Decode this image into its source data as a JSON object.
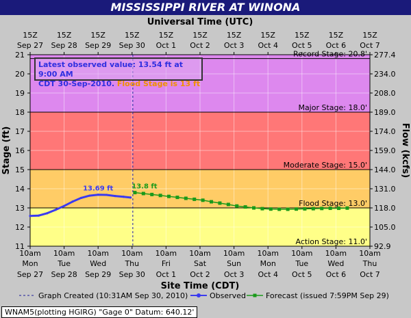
{
  "title": "MISSISSIPPI RIVER AT WINONA",
  "top_axis_title": "Universal Time (UTC)",
  "bottom_axis_title": "Site Time (CDT)",
  "left_axis_title": "Stage (ft)",
  "right_axis_title": "Flow (kcfs)",
  "top_ticks": [
    {
      "l1": "15Z",
      "l2": "Sep 27"
    },
    {
      "l1": "15Z",
      "l2": "Sep 28"
    },
    {
      "l1": "15Z",
      "l2": "Sep 29"
    },
    {
      "l1": "15Z",
      "l2": "Sep 30"
    },
    {
      "l1": "15Z",
      "l2": "Oct 1"
    },
    {
      "l1": "15Z",
      "l2": "Oct 2"
    },
    {
      "l1": "15Z",
      "l2": "Oct 3"
    },
    {
      "l1": "15Z",
      "l2": "Oct 4"
    },
    {
      "l1": "15Z",
      "l2": "Oct 5"
    },
    {
      "l1": "15Z",
      "l2": "Oct 6"
    },
    {
      "l1": "15Z",
      "l2": "Oct 7"
    }
  ],
  "bottom_ticks": [
    {
      "l1": "10am",
      "l2": "Mon",
      "l3": "Sep 27"
    },
    {
      "l1": "10am",
      "l2": "Tue",
      "l3": "Sep 28"
    },
    {
      "l1": "10am",
      "l2": "Wed",
      "l3": "Sep 29"
    },
    {
      "l1": "10am",
      "l2": "Thu",
      "l3": "Sep 30"
    },
    {
      "l1": "10am",
      "l2": "Fri",
      "l3": "Oct 1"
    },
    {
      "l1": "10am",
      "l2": "Sat",
      "l3": "Oct 2"
    },
    {
      "l1": "10am",
      "l2": "Sun",
      "l3": "Oct 3"
    },
    {
      "l1": "10am",
      "l2": "Mon",
      "l3": "Oct 4"
    },
    {
      "l1": "10am",
      "l2": "Tue",
      "l3": "Oct 5"
    },
    {
      "l1": "10am",
      "l2": "Wed",
      "l3": "Oct 6"
    },
    {
      "l1": "10am",
      "l2": "Thu",
      "l3": "Oct 7"
    }
  ],
  "left_ticks": [
    11,
    12,
    13,
    14,
    15,
    16,
    17,
    18,
    19,
    20,
    21
  ],
  "right_ticks": [
    {
      "stage": 11,
      "label": "92.9"
    },
    {
      "stage": 12,
      "label": "105.0"
    },
    {
      "stage": 13,
      "label": "118.0"
    },
    {
      "stage": 14,
      "label": "131.0"
    },
    {
      "stage": 15,
      "label": "144.0"
    },
    {
      "stage": 16,
      "label": "159.0"
    },
    {
      "stage": 17,
      "label": "174.0"
    },
    {
      "stage": 18,
      "label": "189.0"
    },
    {
      "stage": 19,
      "label": "208.0"
    },
    {
      "stage": 20,
      "label": "234.0"
    },
    {
      "stage": 21,
      "label": "277.4"
    }
  ],
  "bands": [
    {
      "from": 11,
      "to": 13,
      "color": "#ffff88"
    },
    {
      "from": 13,
      "to": 15,
      "color": "#ffcc66"
    },
    {
      "from": 15,
      "to": 18,
      "color": "#ff7777"
    },
    {
      "from": 18,
      "to": 21,
      "color": "#dd88ee"
    }
  ],
  "stage_lines": [
    {
      "value": 20.8,
      "label": "Record Stage: 20.8'"
    },
    {
      "value": 18.0,
      "label": "Major Stage: 18.0'"
    },
    {
      "value": 15.0,
      "label": "Moderate Stage: 15.0'"
    },
    {
      "value": 13.0,
      "label": "Flood Stage: 13.0'"
    },
    {
      "value": 11.0,
      "label": "Action Stage: 11.0'"
    }
  ],
  "observed_box": {
    "line1": "Latest observed value: 13.54 ft at 9:00 AM",
    "line2": "CDT 30-Sep-2010.",
    "flood": "Flood Stage is 13 ft"
  },
  "legend": {
    "created": "Graph Created (10:31AM Sep 30, 2010)",
    "observed": "Observed",
    "forecast": "Forecast (issued 7:59PM Sep 29)"
  },
  "plotting_note": "WNAM5(plotting HGIRG) \"Gage 0\" Datum: 640.12'",
  "colors": {
    "observed": "#3a3af0",
    "forecast": "#1a9a1a",
    "created_line": "#1a1a9a"
  },
  "chart_data": {
    "type": "line",
    "title": "MISSISSIPPI RIVER AT WINONA",
    "xlabel": "Site Time (CDT)",
    "ylabel": "Stage (ft)",
    "y2label": "Flow (kcfs)",
    "xlim": [
      "2010-09-27 10:00",
      "2010-10-07 10:00"
    ],
    "ylim": [
      11,
      21
    ],
    "created_time": "2010-09-30 10:31",
    "series": [
      {
        "name": "Observed",
        "points": [
          [
            "2010-09-27 10:00",
            12.58
          ],
          [
            "2010-09-27 16:00",
            12.6
          ],
          [
            "2010-09-27 22:00",
            12.72
          ],
          [
            "2010-09-28 04:00",
            12.9
          ],
          [
            "2010-09-28 10:00",
            13.1
          ],
          [
            "2010-09-28 16:00",
            13.33
          ],
          [
            "2010-09-28 22:00",
            13.52
          ],
          [
            "2010-09-29 04:00",
            13.64
          ],
          [
            "2010-09-29 10:00",
            13.69
          ],
          [
            "2010-09-29 16:00",
            13.68
          ],
          [
            "2010-09-29 22:00",
            13.62
          ],
          [
            "2010-09-30 04:00",
            13.58
          ],
          [
            "2010-09-30 09:00",
            13.54
          ]
        ],
        "peak_label": {
          "x": "2010-09-29 10:00",
          "y": 13.69,
          "text": "13.69 ft"
        }
      },
      {
        "name": "Forecast",
        "points": [
          [
            "2010-09-30 12:00",
            13.8
          ],
          [
            "2010-09-30 18:00",
            13.75
          ],
          [
            "2010-10-01 00:00",
            13.7
          ],
          [
            "2010-10-01 06:00",
            13.65
          ],
          [
            "2010-10-01 12:00",
            13.6
          ],
          [
            "2010-10-01 18:00",
            13.55
          ],
          [
            "2010-10-02 00:00",
            13.5
          ],
          [
            "2010-10-02 06:00",
            13.45
          ],
          [
            "2010-10-02 12:00",
            13.4
          ],
          [
            "2010-10-02 18:00",
            13.32
          ],
          [
            "2010-10-03 00:00",
            13.25
          ],
          [
            "2010-10-03 06:00",
            13.18
          ],
          [
            "2010-10-03 12:00",
            13.1
          ],
          [
            "2010-10-03 18:00",
            13.05
          ],
          [
            "2010-10-04 00:00",
            13.0
          ],
          [
            "2010-10-04 06:00",
            12.96
          ],
          [
            "2010-10-04 12:00",
            12.94
          ],
          [
            "2010-10-04 18:00",
            12.93
          ],
          [
            "2010-10-05 00:00",
            12.93
          ],
          [
            "2010-10-05 06:00",
            12.94
          ],
          [
            "2010-10-05 12:00",
            12.95
          ],
          [
            "2010-10-05 18:00",
            12.96
          ],
          [
            "2010-10-06 00:00",
            12.97
          ],
          [
            "2010-10-06 06:00",
            12.98
          ],
          [
            "2010-10-06 12:00",
            12.98
          ],
          [
            "2010-10-06 18:00",
            12.99
          ]
        ],
        "peak_label": {
          "x": "2010-09-30 12:00",
          "y": 13.8,
          "text": "13.8 ft"
        }
      }
    ]
  }
}
